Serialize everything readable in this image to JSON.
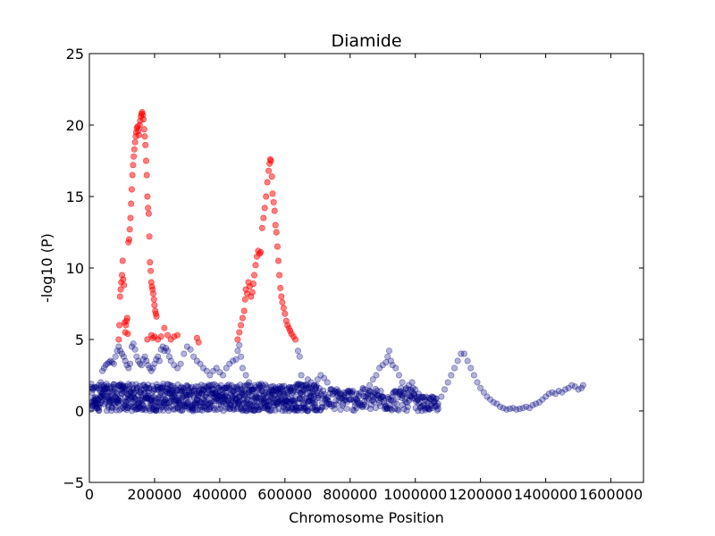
{
  "chart_data": {
    "type": "scatter",
    "title": "Diamide",
    "xlabel": "Chromosome Position",
    "ylabel": "-log10 (P)",
    "xlim": [
      0,
      1700000
    ],
    "ylim": [
      -5,
      25
    ],
    "xticks": [
      0,
      200000,
      400000,
      600000,
      800000,
      1000000,
      1200000,
      1400000,
      1600000
    ],
    "xtick_labels": [
      "0",
      "200000",
      "400000",
      "600000",
      "800000",
      "1000000",
      "1200000",
      "1400000",
      "1600000"
    ],
    "yticks": [
      -5,
      0,
      5,
      10,
      15,
      20,
      25
    ],
    "ytick_labels": [
      "−5",
      "0",
      "5",
      "10",
      "15",
      "20",
      "25"
    ],
    "grid": false,
    "legend": "none",
    "series": [
      {
        "color": "#ff0000",
        "alpha": 0.5,
        "peaks": [
          {
            "x": 160000,
            "y": 20.8
          },
          {
            "x": 555000,
            "y": 17.6
          }
        ],
        "points": [
          [
            90000,
            5.0
          ],
          [
            92000,
            6.0
          ],
          [
            94000,
            8.0
          ],
          [
            96000,
            8.5
          ],
          [
            98000,
            9.0
          ],
          [
            100000,
            9.5
          ],
          [
            102000,
            10.5
          ],
          [
            104000,
            9.2
          ],
          [
            106000,
            8.8
          ],
          [
            108000,
            6.2
          ],
          [
            110000,
            5.5
          ],
          [
            112000,
            6.0
          ],
          [
            114000,
            6.3
          ],
          [
            116000,
            6.5
          ],
          [
            118000,
            5.4
          ],
          [
            120000,
            11.8
          ],
          [
            122000,
            12.0
          ],
          [
            124000,
            12.7
          ],
          [
            126000,
            13.5
          ],
          [
            128000,
            14.5
          ],
          [
            130000,
            15.5
          ],
          [
            132000,
            16.5
          ],
          [
            134000,
            17.2
          ],
          [
            136000,
            17.8
          ],
          [
            138000,
            18.3
          ],
          [
            140000,
            18.8
          ],
          [
            142000,
            19.2
          ],
          [
            144000,
            19.5
          ],
          [
            146000,
            19.8
          ],
          [
            148000,
            19.9
          ],
          [
            150000,
            19.6
          ],
          [
            152000,
            19.3
          ],
          [
            154000,
            20.0
          ],
          [
            156000,
            20.3
          ],
          [
            158000,
            20.6
          ],
          [
            160000,
            20.8
          ],
          [
            162000,
            20.9
          ],
          [
            164000,
            20.7
          ],
          [
            166000,
            20.4
          ],
          [
            168000,
            19.7
          ],
          [
            170000,
            19.2
          ],
          [
            172000,
            18.6
          ],
          [
            174000,
            17.5
          ],
          [
            176000,
            16.5
          ],
          [
            178000,
            15.0
          ],
          [
            180000,
            14.2
          ],
          [
            182000,
            13.8
          ],
          [
            184000,
            12.2
          ],
          [
            186000,
            10.4
          ],
          [
            188000,
            9.8
          ],
          [
            190000,
            9.0
          ],
          [
            192000,
            8.7
          ],
          [
            194000,
            8.5
          ],
          [
            196000,
            8.2
          ],
          [
            198000,
            7.8
          ],
          [
            200000,
            7.4
          ],
          [
            202000,
            7.0
          ],
          [
            204000,
            6.8
          ],
          [
            206000,
            6.6
          ],
          [
            190000,
            5.3
          ],
          [
            195000,
            5.1
          ],
          [
            200000,
            5.2
          ],
          [
            210000,
            5.0
          ],
          [
            220000,
            5.2
          ],
          [
            230000,
            5.8
          ],
          [
            240000,
            5.3
          ],
          [
            250000,
            5.0
          ],
          [
            260000,
            5.2
          ],
          [
            270000,
            5.3
          ],
          [
            330000,
            5.1
          ],
          [
            335000,
            4.8
          ],
          [
            178000,
            5.0
          ],
          [
            455000,
            5.0
          ],
          [
            460000,
            5.5
          ],
          [
            465000,
            6.0
          ],
          [
            470000,
            6.5
          ],
          [
            475000,
            7.0
          ],
          [
            478000,
            7.8
          ],
          [
            480000,
            8.5
          ],
          [
            484000,
            8.2
          ],
          [
            488000,
            9.0
          ],
          [
            492000,
            8.7
          ],
          [
            496000,
            8.0
          ],
          [
            500000,
            8.3
          ],
          [
            503000,
            8.9
          ],
          [
            506000,
            9.5
          ],
          [
            510000,
            10.2
          ],
          [
            514000,
            10.8
          ],
          [
            518000,
            11.2
          ],
          [
            522000,
            11.0
          ],
          [
            526000,
            11.1
          ],
          [
            530000,
            12.8
          ],
          [
            534000,
            13.5
          ],
          [
            538000,
            14.2
          ],
          [
            542000,
            15.0
          ],
          [
            546000,
            16.0
          ],
          [
            550000,
            16.8
          ],
          [
            553000,
            17.3
          ],
          [
            555000,
            17.6
          ],
          [
            557000,
            17.5
          ],
          [
            560000,
            16.4
          ],
          [
            562000,
            15.2
          ],
          [
            565000,
            14.6
          ],
          [
            568000,
            14.0
          ],
          [
            571000,
            13.0
          ],
          [
            574000,
            12.5
          ],
          [
            577000,
            11.5
          ],
          [
            580000,
            10.5
          ],
          [
            583000,
            9.5
          ],
          [
            586000,
            8.6
          ],
          [
            589000,
            8.0
          ],
          [
            592000,
            7.6
          ],
          [
            596000,
            7.2
          ],
          [
            600000,
            6.8
          ],
          [
            604000,
            6.3
          ],
          [
            608000,
            6.0
          ],
          [
            612000,
            5.8
          ],
          [
            616000,
            5.6
          ],
          [
            620000,
            5.4
          ],
          [
            626000,
            5.2
          ],
          [
            632000,
            5.0
          ]
        ]
      },
      {
        "color": "#000080",
        "alpha": 0.3,
        "points": [
          [
            5000,
            0.1
          ],
          [
            10000,
            0.3
          ],
          [
            15000,
            0.5
          ],
          [
            20000,
            0.2
          ],
          [
            25000,
            0.8
          ],
          [
            30000,
            1.5
          ],
          [
            35000,
            2.0
          ],
          [
            40000,
            2.8
          ],
          [
            45000,
            3.0
          ],
          [
            50000,
            3.2
          ],
          [
            55000,
            3.3
          ],
          [
            60000,
            3.4
          ],
          [
            65000,
            3.5
          ],
          [
            70000,
            3.4
          ],
          [
            75000,
            3.3
          ],
          [
            80000,
            3.8
          ],
          [
            85000,
            4.2
          ],
          [
            90000,
            4.5
          ],
          [
            95000,
            4.2
          ],
          [
            100000,
            4.0
          ],
          [
            105000,
            3.8
          ],
          [
            110000,
            3.5
          ],
          [
            115000,
            3.2
          ],
          [
            120000,
            3.0
          ],
          [
            125000,
            3.3
          ],
          [
            130000,
            4.5
          ],
          [
            135000,
            4.7
          ],
          [
            140000,
            4.3
          ],
          [
            145000,
            3.8
          ],
          [
            150000,
            3.5
          ],
          [
            155000,
            3.3
          ],
          [
            160000,
            3.2
          ],
          [
            165000,
            3.6
          ],
          [
            170000,
            3.8
          ],
          [
            175000,
            3.5
          ],
          [
            180000,
            3.2
          ],
          [
            185000,
            3.0
          ],
          [
            190000,
            2.8
          ],
          [
            195000,
            3.0
          ],
          [
            200000,
            3.3
          ],
          [
            205000,
            3.6
          ],
          [
            210000,
            3.8
          ],
          [
            215000,
            3.5
          ],
          [
            220000,
            4.3
          ],
          [
            225000,
            4.5
          ],
          [
            230000,
            4.2
          ],
          [
            235000,
            4.4
          ],
          [
            240000,
            4.2
          ],
          [
            245000,
            3.8
          ],
          [
            250000,
            3.5
          ],
          [
            260000,
            3.2
          ],
          [
            270000,
            3.0
          ],
          [
            280000,
            3.3
          ],
          [
            290000,
            4.0
          ],
          [
            300000,
            4.5
          ],
          [
            310000,
            4.3
          ],
          [
            320000,
            3.8
          ],
          [
            330000,
            3.5
          ],
          [
            340000,
            3.3
          ],
          [
            350000,
            3.0
          ],
          [
            360000,
            2.8
          ],
          [
            370000,
            2.5
          ],
          [
            380000,
            2.8
          ],
          [
            390000,
            3.0
          ],
          [
            400000,
            2.7
          ],
          [
            410000,
            2.5
          ],
          [
            420000,
            3.0
          ],
          [
            430000,
            3.3
          ],
          [
            440000,
            3.5
          ],
          [
            450000,
            3.6
          ],
          [
            455000,
            4.2
          ],
          [
            460000,
            4.6
          ],
          [
            465000,
            3.8
          ],
          [
            470000,
            3.0
          ],
          [
            480000,
            2.5
          ],
          [
            490000,
            2.0
          ],
          [
            500000,
            1.5
          ],
          [
            520000,
            1.2
          ],
          [
            540000,
            1.3
          ],
          [
            560000,
            1.5
          ],
          [
            580000,
            1.2
          ],
          [
            600000,
            1.0
          ],
          [
            620000,
            1.2
          ],
          [
            640000,
            4.2
          ],
          [
            645000,
            3.8
          ],
          [
            650000,
            2.5
          ],
          [
            660000,
            1.8
          ],
          [
            670000,
            2.2
          ],
          [
            680000,
            2.0
          ],
          [
            690000,
            1.8
          ],
          [
            700000,
            2.2
          ],
          [
            710000,
            2.5
          ],
          [
            720000,
            2.3
          ],
          [
            730000,
            2.0
          ],
          [
            740000,
            1.5
          ],
          [
            760000,
            1.2
          ],
          [
            780000,
            1.0
          ],
          [
            800000,
            0.8
          ],
          [
            820000,
            1.2
          ],
          [
            840000,
            1.5
          ],
          [
            860000,
            1.8
          ],
          [
            870000,
            2.2
          ],
          [
            880000,
            2.5
          ],
          [
            890000,
            3.0
          ],
          [
            900000,
            3.2
          ],
          [
            910000,
            3.4
          ],
          [
            915000,
            3.8
          ],
          [
            920000,
            4.2
          ],
          [
            925000,
            3.5
          ],
          [
            930000,
            3.2
          ],
          [
            940000,
            3.0
          ],
          [
            950000,
            2.5
          ],
          [
            960000,
            2.0
          ],
          [
            970000,
            1.5
          ],
          [
            980000,
            1.8
          ],
          [
            990000,
            2.0
          ],
          [
            1000000,
            1.5
          ],
          [
            1010000,
            1.2
          ],
          [
            1020000,
            1.0
          ],
          [
            1030000,
            0.8
          ],
          [
            1040000,
            0.6
          ],
          [
            1050000,
            0.5
          ],
          [
            1060000,
            0.3
          ],
          [
            1070000,
            0.5
          ],
          [
            1080000,
            1.0
          ],
          [
            1090000,
            1.5
          ],
          [
            1100000,
            2.0
          ],
          [
            1110000,
            2.5
          ],
          [
            1120000,
            3.0
          ],
          [
            1130000,
            3.5
          ],
          [
            1140000,
            4.0
          ],
          [
            1150000,
            4.0
          ],
          [
            1160000,
            3.5
          ],
          [
            1170000,
            3.0
          ],
          [
            1180000,
            2.5
          ],
          [
            1190000,
            2.0
          ],
          [
            1200000,
            1.6
          ],
          [
            1210000,
            1.3
          ],
          [
            1220000,
            1.0
          ],
          [
            1230000,
            0.8
          ],
          [
            1240000,
            0.6
          ],
          [
            1250000,
            0.5
          ],
          [
            1260000,
            0.3
          ],
          [
            1270000,
            0.2
          ],
          [
            1280000,
            0.1
          ],
          [
            1290000,
            0.15
          ],
          [
            1300000,
            0.2
          ],
          [
            1310000,
            0.1
          ],
          [
            1320000,
            0.15
          ],
          [
            1330000,
            0.2
          ],
          [
            1340000,
            0.3
          ],
          [
            1350000,
            0.2
          ],
          [
            1360000,
            0.4
          ],
          [
            1370000,
            0.5
          ],
          [
            1380000,
            0.6
          ],
          [
            1390000,
            0.8
          ],
          [
            1400000,
            1.0
          ],
          [
            1410000,
            1.2
          ],
          [
            1420000,
            1.3
          ],
          [
            1430000,
            1.2
          ],
          [
            1440000,
            1.4
          ],
          [
            1450000,
            1.3
          ],
          [
            1460000,
            1.5
          ],
          [
            1470000,
            1.6
          ],
          [
            1480000,
            1.8
          ],
          [
            1490000,
            1.7
          ],
          [
            1500000,
            1.5
          ],
          [
            1510000,
            1.6
          ],
          [
            1515000,
            1.8
          ]
        ]
      }
    ]
  }
}
